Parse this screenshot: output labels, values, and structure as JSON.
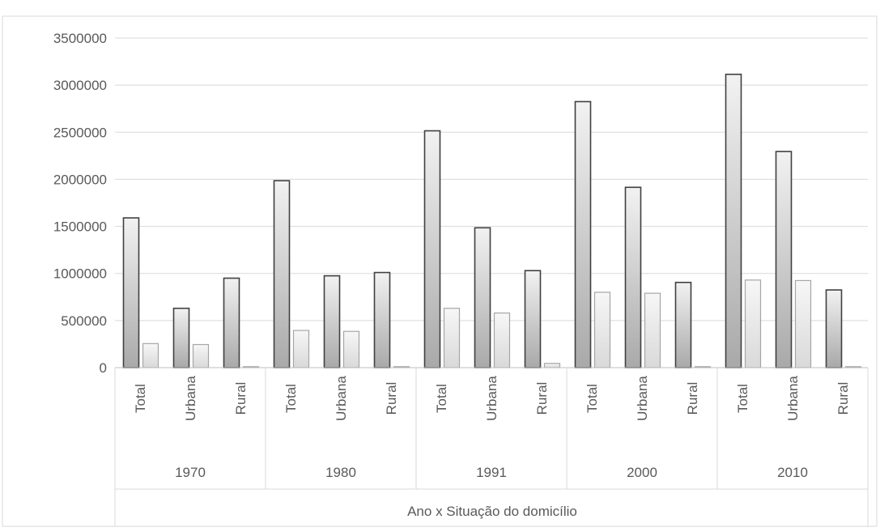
{
  "chart_data": {
    "type": "bar",
    "xlabel": "Ano x Situação do domicílio",
    "ylabel": "",
    "ylim": [
      0,
      3500000
    ],
    "yticks": [
      0,
      500000,
      1000000,
      1500000,
      2000000,
      2500000,
      3000000,
      3500000
    ],
    "ytick_labels": [
      "0",
      "500000",
      "1000000",
      "1500000",
      "2000000",
      "2500000",
      "3000000",
      "3500000"
    ],
    "grid": true,
    "legend": "none",
    "groups": [
      "1970",
      "1980",
      "1991",
      "2000",
      "2010"
    ],
    "categories": [
      "Total",
      "Urbana",
      "Rural"
    ],
    "series": [
      {
        "color": "#d4d4d4",
        "values": [
          [
            1590000,
            630000,
            950000
          ],
          [
            1985000,
            975000,
            1010000
          ],
          [
            2515000,
            1485000,
            1030000
          ],
          [
            2825000,
            1915000,
            905000
          ],
          [
            3115000,
            2295000,
            825000
          ]
        ]
      },
      {
        "color": "#ececec",
        "values": [
          [
            255000,
            245000,
            10000
          ],
          [
            395000,
            385000,
            10000
          ],
          [
            630000,
            580000,
            45000
          ],
          [
            800000,
            790000,
            10000
          ],
          [
            930000,
            925000,
            10000
          ]
        ]
      }
    ]
  }
}
